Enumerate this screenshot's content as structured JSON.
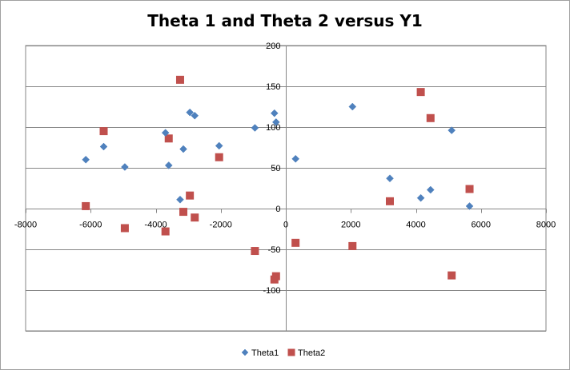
{
  "chart_data": {
    "type": "scatter",
    "title": "Theta 1 and Theta 2 versus Y1",
    "xlabel": "",
    "ylabel": "",
    "xlim": [
      -8000,
      8000
    ],
    "ylim": [
      -150,
      200
    ],
    "x_ticks": [
      -8000,
      -6000,
      -4000,
      -2000,
      0,
      2000,
      4000,
      6000,
      8000
    ],
    "y_ticks": [
      -150,
      -100,
      -50,
      0,
      50,
      100,
      150,
      200
    ],
    "x_tick_labels": [
      "-8000",
      "-6000",
      "-4000",
      "-2000",
      "0",
      "2000",
      "4000",
      "6000",
      "8000"
    ],
    "y_tick_labels": [
      "",
      "-100",
      "-50",
      "0",
      "50",
      "100",
      "150",
      "200"
    ],
    "grid": "horizontal major gridlines",
    "legend_position": "bottom",
    "series": [
      {
        "name": "Theta1",
        "marker": "diamond",
        "color": "#4f81bd",
        "points": [
          [
            -6150,
            60
          ],
          [
            -5600,
            76
          ],
          [
            -4950,
            51
          ],
          [
            -3700,
            93
          ],
          [
            -3600,
            53
          ],
          [
            -3250,
            11
          ],
          [
            -3150,
            73
          ],
          [
            -2950,
            118
          ],
          [
            -2800,
            114
          ],
          [
            -2050,
            77
          ],
          [
            -950,
            99
          ],
          [
            -350,
            117
          ],
          [
            -300,
            106
          ],
          [
            300,
            61
          ],
          [
            2050,
            125
          ],
          [
            3200,
            37
          ],
          [
            4150,
            13
          ],
          [
            4450,
            23
          ],
          [
            5100,
            96
          ],
          [
            5650,
            3
          ]
        ]
      },
      {
        "name": "Theta2",
        "marker": "square",
        "color": "#c0504d",
        "points": [
          [
            -6150,
            3
          ],
          [
            -5600,
            95
          ],
          [
            -4950,
            -24
          ],
          [
            -3700,
            -28
          ],
          [
            -3600,
            86
          ],
          [
            -3250,
            158
          ],
          [
            -3150,
            -4
          ],
          [
            -2950,
            16
          ],
          [
            -2800,
            -11
          ],
          [
            -2050,
            63
          ],
          [
            -950,
            -52
          ],
          [
            -350,
            -87
          ],
          [
            -300,
            -83
          ],
          [
            300,
            -42
          ],
          [
            2050,
            -46
          ],
          [
            3200,
            9
          ],
          [
            4150,
            143
          ],
          [
            4450,
            111
          ],
          [
            5100,
            -82
          ],
          [
            5650,
            24
          ]
        ]
      }
    ]
  }
}
